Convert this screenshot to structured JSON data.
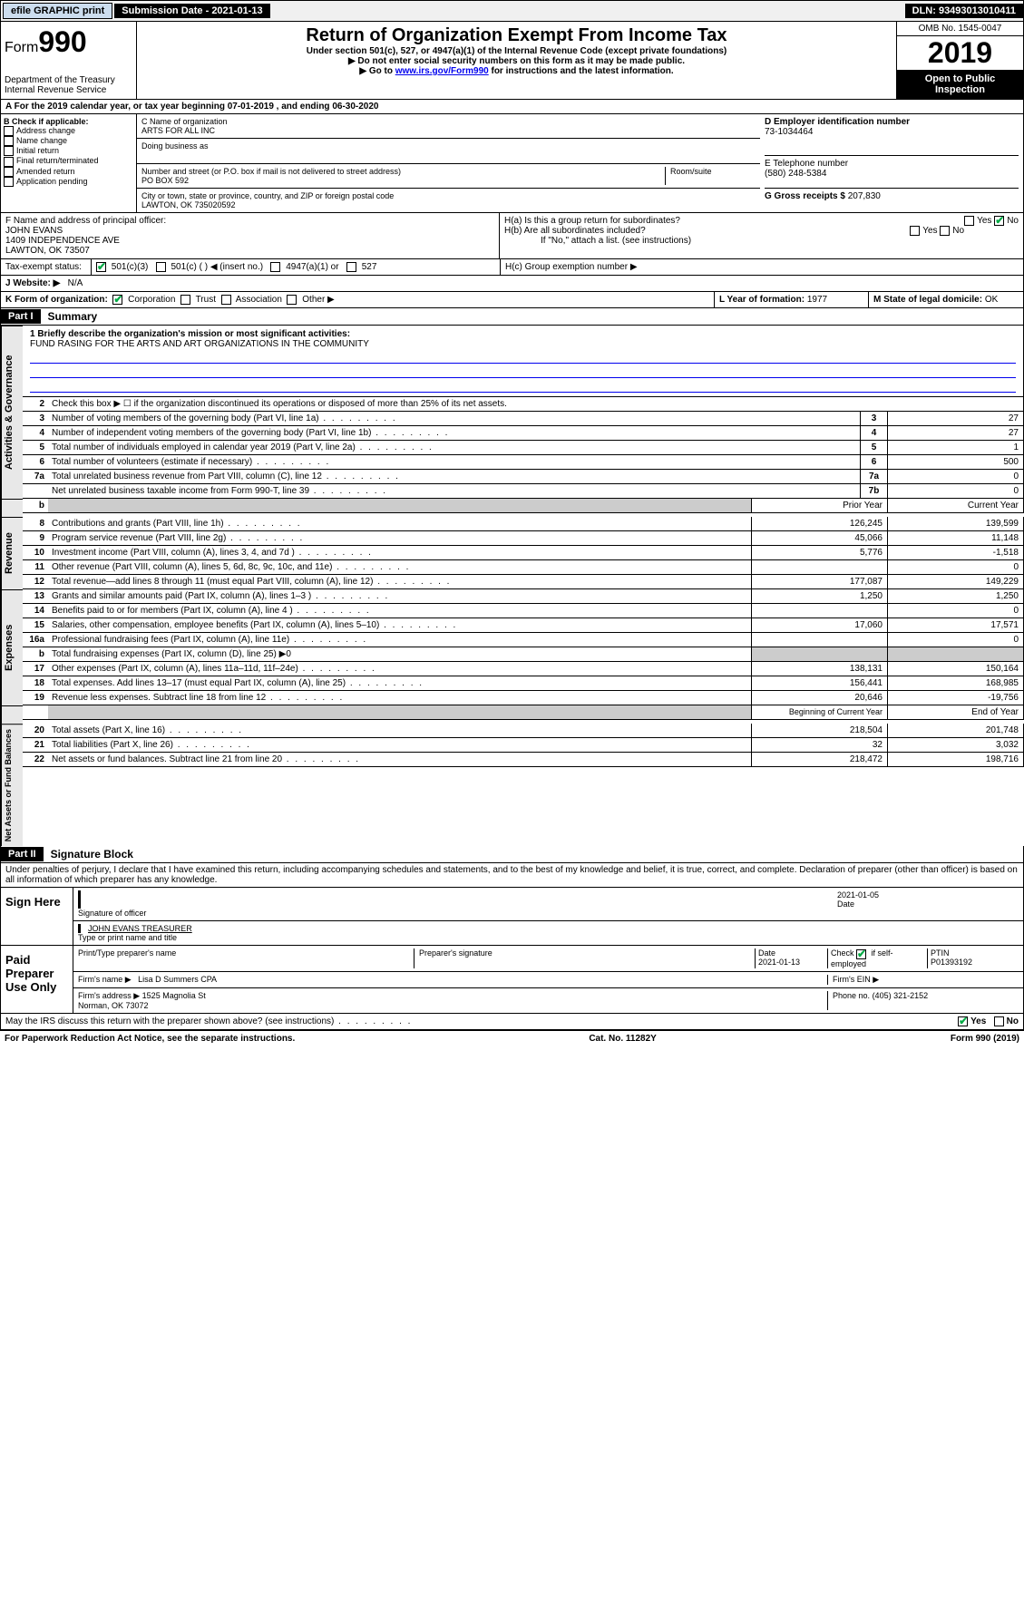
{
  "topbar": {
    "efile": "efile GRAPHIC print",
    "sub_label": "Submission Date - 2021-01-13",
    "dln": "DLN: 93493013010411"
  },
  "header": {
    "form": "Form",
    "num": "990",
    "dept": "Department of the Treasury\nInternal Revenue Service",
    "title": "Return of Organization Exempt From Income Tax",
    "sub1": "Under section 501(c), 527, or 4947(a)(1) of the Internal Revenue Code (except private foundations)",
    "sub2": "▶ Do not enter social security numbers on this form as it may be made public.",
    "sub3": "▶ Go to www.irs.gov/Form990 for instructions and the latest information.",
    "omb": "OMB No. 1545-0047",
    "year": "2019",
    "open": "Open to Public Inspection"
  },
  "period": "A For the 2019 calendar year, or tax year beginning 07-01-2019    , and ending 06-30-2020",
  "boxB": {
    "title": "B Check if applicable:",
    "items": [
      "Address change",
      "Name change",
      "Initial return",
      "Final return/terminated",
      "Amended return",
      "Application pending"
    ]
  },
  "boxC": {
    "name_lbl": "C Name of organization",
    "name": "ARTS FOR ALL INC",
    "dba_lbl": "Doing business as",
    "dba": "",
    "street_lbl": "Number and street (or P.O. box if mail is not delivered to street address)",
    "street": "PO BOX 592",
    "room_lbl": "Room/suite",
    "city_lbl": "City or town, state or province, country, and ZIP or foreign postal code",
    "city": "LAWTON, OK  735020592"
  },
  "boxD": {
    "lbl": "D Employer identification number",
    "val": "73-1034464"
  },
  "boxE": {
    "lbl": "E Telephone number",
    "val": "(580) 248-5384"
  },
  "boxG": {
    "lbl": "G Gross receipts $",
    "val": "207,830"
  },
  "boxF": {
    "lbl": "F  Name and address of principal officer:",
    "name": "JOHN EVANS",
    "addr1": "1409 INDEPENDENCE AVE",
    "addr2": "LAWTON, OK  73507"
  },
  "boxH": {
    "a": "H(a)  Is this a group return for subordinates?",
    "b": "H(b)  Are all subordinates included?",
    "note": "If \"No,\" attach a list. (see instructions)",
    "c": "H(c)  Group exemption number ▶"
  },
  "taxI": "Tax-exempt status:",
  "taxI_opts": [
    "501(c)(3)",
    "501(c) (  ) ◀ (insert no.)",
    "4947(a)(1) or",
    "527"
  ],
  "siteJ": {
    "lbl": "J   Website: ▶",
    "val": "N/A"
  },
  "lineK": "K Form of organization:",
  "lineK_opts": [
    "Corporation",
    "Trust",
    "Association",
    "Other ▶"
  ],
  "lineL": {
    "lbl": "L Year of formation:",
    "val": "1977"
  },
  "lineM": {
    "lbl": "M State of legal domicile:",
    "val": "OK"
  },
  "part1": {
    "hdr": "Part I",
    "title": "Summary"
  },
  "mission": {
    "q": "1  Briefly describe the organization's mission or most significant activities:",
    "a": "FUND RASING FOR THE ARTS AND ART ORGANIZATIONS IN THE COMMUNITY"
  },
  "line2": "Check this box ▶ ☐  if the organization discontinued its operations or disposed of more than 25% of its net assets.",
  "lines_gov": [
    {
      "n": "3",
      "d": "Number of voting members of the governing body (Part VI, line 1a)",
      "c": "3",
      "v": "27"
    },
    {
      "n": "4",
      "d": "Number of independent voting members of the governing body (Part VI, line 1b)",
      "c": "4",
      "v": "27"
    },
    {
      "n": "5",
      "d": "Total number of individuals employed in calendar year 2019 (Part V, line 2a)",
      "c": "5",
      "v": "1"
    },
    {
      "n": "6",
      "d": "Total number of volunteers (estimate if necessary)",
      "c": "6",
      "v": "500"
    },
    {
      "n": "7a",
      "d": "Total unrelated business revenue from Part VIII, column (C), line 12",
      "c": "7a",
      "v": "0"
    },
    {
      "n": "",
      "d": "Net unrelated business taxable income from Form 990-T, line 39",
      "c": "7b",
      "v": "0"
    }
  ],
  "col_hdr": {
    "b": "b",
    "py": "Prior Year",
    "cy": "Current Year"
  },
  "lines_rev": [
    {
      "n": "8",
      "d": "Contributions and grants (Part VIII, line 1h)",
      "py": "126,245",
      "cy": "139,599"
    },
    {
      "n": "9",
      "d": "Program service revenue (Part VIII, line 2g)",
      "py": "45,066",
      "cy": "11,148"
    },
    {
      "n": "10",
      "d": "Investment income (Part VIII, column (A), lines 3, 4, and 7d )",
      "py": "5,776",
      "cy": "-1,518"
    },
    {
      "n": "11",
      "d": "Other revenue (Part VIII, column (A), lines 5, 6d, 8c, 9c, 10c, and 11e)",
      "py": "",
      "cy": "0"
    },
    {
      "n": "12",
      "d": "Total revenue—add lines 8 through 11 (must equal Part VIII, column (A), line 12)",
      "py": "177,087",
      "cy": "149,229"
    }
  ],
  "lines_exp": [
    {
      "n": "13",
      "d": "Grants and similar amounts paid (Part IX, column (A), lines 1–3 )",
      "py": "1,250",
      "cy": "1,250"
    },
    {
      "n": "14",
      "d": "Benefits paid to or for members (Part IX, column (A), line 4 )",
      "py": "",
      "cy": "0"
    },
    {
      "n": "15",
      "d": "Salaries, other compensation, employee benefits (Part IX, column (A), lines 5–10)",
      "py": "17,060",
      "cy": "17,571"
    },
    {
      "n": "16a",
      "d": "Professional fundraising fees (Part IX, column (A), line 11e)",
      "py": "",
      "cy": "0"
    },
    {
      "n": "b",
      "d": "Total fundraising expenses (Part IX, column (D), line 25) ▶0",
      "py": "",
      "cy": "",
      "grey": true
    },
    {
      "n": "17",
      "d": "Other expenses (Part IX, column (A), lines 11a–11d, 11f–24e)",
      "py": "138,131",
      "cy": "150,164"
    },
    {
      "n": "18",
      "d": "Total expenses. Add lines 13–17 (must equal Part IX, column (A), line 25)",
      "py": "156,441",
      "cy": "168,985"
    },
    {
      "n": "19",
      "d": "Revenue less expenses. Subtract line 18 from line 12",
      "py": "20,646",
      "cy": "-19,756"
    }
  ],
  "col_hdr2": {
    "py": "Beginning of Current Year",
    "cy": "End of Year"
  },
  "lines_net": [
    {
      "n": "20",
      "d": "Total assets (Part X, line 16)",
      "py": "218,504",
      "cy": "201,748"
    },
    {
      "n": "21",
      "d": "Total liabilities (Part X, line 26)",
      "py": "32",
      "cy": "3,032"
    },
    {
      "n": "22",
      "d": "Net assets or fund balances. Subtract line 21 from line 20",
      "py": "218,472",
      "cy": "198,716"
    }
  ],
  "vlabels": {
    "gov": "Activities & Governance",
    "rev": "Revenue",
    "exp": "Expenses",
    "net": "Net Assets or Fund Balances"
  },
  "part2": {
    "hdr": "Part II",
    "title": "Signature Block"
  },
  "decl": "Under penalties of perjury, I declare that I have examined this return, including accompanying schedules and statements, and to the best of my knowledge and belief, it is true, correct, and complete. Declaration of preparer (other than officer) is based on all information of which preparer has any knowledge.",
  "sign": {
    "here": "Sign Here",
    "sig_lbl": "Signature of officer",
    "date": "2021-01-05",
    "date_lbl": "Date",
    "name": "JOHN EVANS  TREASURER",
    "name_lbl": "Type or print name and title"
  },
  "paid": {
    "hdr": "Paid Preparer Use Only",
    "prep_name_lbl": "Print/Type preparer's name",
    "prep_sig_lbl": "Preparer's signature",
    "prep_date_lbl": "Date",
    "prep_date": "2021-01-13",
    "check_lbl": "Check ☑ if self-employed",
    "ptin_lbl": "PTIN",
    "ptin": "P01393192",
    "firm_name_lbl": "Firm's name    ▶",
    "firm_name": "Lisa D Summers CPA",
    "firm_ein_lbl": "Firm's EIN ▶",
    "firm_addr_lbl": "Firm's address ▶",
    "firm_addr": "1525 Magnolia St\nNorman, OK  73072",
    "firm_phone_lbl": "Phone no.",
    "firm_phone": "(405) 321-2152"
  },
  "discuss": "May the IRS discuss this return with the preparer shown above? (see instructions)",
  "footer": {
    "left": "For Paperwork Reduction Act Notice, see the separate instructions.",
    "mid": "Cat. No. 11282Y",
    "right": "Form 990 (2019)"
  },
  "yes": "Yes",
  "no": "No"
}
